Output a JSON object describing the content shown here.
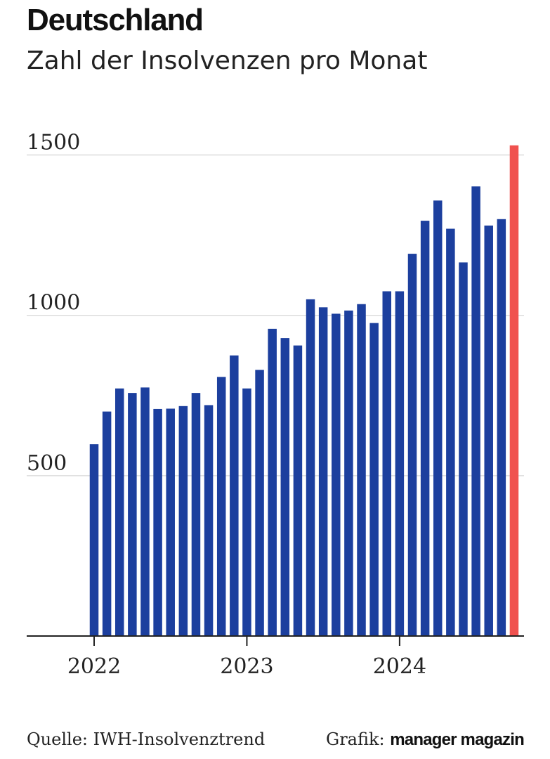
{
  "header": {
    "title": "Deutschland",
    "subtitle": "Zahl der Insolvenzen pro Monat"
  },
  "footer": {
    "source": "Quelle: IWH-Insolvenztrend",
    "credit_label": "Grafik:",
    "credit_brand": "manager magazin"
  },
  "colors": {
    "bar": "#1c3f9e",
    "highlight": "#f0524f",
    "grid": "#dcdcdc",
    "axis": "#222222",
    "text": "#222222"
  },
  "chart_data": {
    "type": "bar",
    "title": "Deutschland",
    "subtitle": "Zahl der Insolvenzen pro Monat",
    "xlabel": "",
    "ylabel": "",
    "ylim": [
      0,
      1500
    ],
    "yticks": [
      500,
      1000,
      1500
    ],
    "ytick_labels": [
      "500",
      "1000",
      "1500"
    ],
    "grid": true,
    "legend": "none",
    "xtick_labels": [
      {
        "label": "2022",
        "category": "2022-01"
      },
      {
        "label": "2023",
        "category": "2023-01"
      },
      {
        "label": "2024",
        "category": "2024-01"
      }
    ],
    "categories": [
      "2022-01",
      "2022-02",
      "2022-03",
      "2022-04",
      "2022-05",
      "2022-06",
      "2022-07",
      "2022-08",
      "2022-09",
      "2022-10",
      "2022-11",
      "2022-12",
      "2023-01",
      "2023-02",
      "2023-03",
      "2023-04",
      "2023-05",
      "2023-06",
      "2023-07",
      "2023-08",
      "2023-09",
      "2023-10",
      "2023-11",
      "2023-12",
      "2024-01",
      "2024-02",
      "2024-03",
      "2024-04",
      "2024-05",
      "2024-06",
      "2024-07",
      "2024-08",
      "2024-09",
      "2024-10"
    ],
    "values": [
      598,
      700,
      772,
      758,
      775,
      708,
      709,
      717,
      758,
      720,
      808,
      875,
      772,
      830,
      958,
      929,
      906,
      1050,
      1025,
      1005,
      1015,
      1035,
      976,
      1075,
      1075,
      1192,
      1295,
      1358,
      1270,
      1165,
      1402,
      1280,
      1300,
      1530
    ],
    "highlight_index": 33
  }
}
